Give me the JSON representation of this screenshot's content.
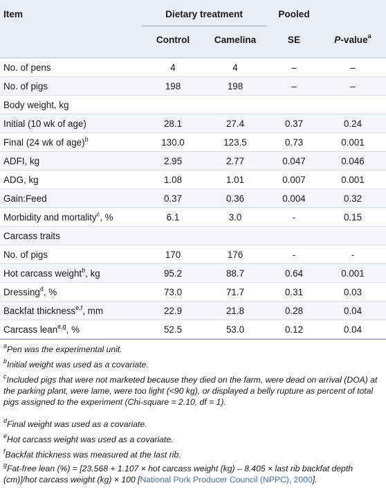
{
  "header": {
    "item": "Item",
    "dietary": "Dietary treatment",
    "pooled": "Pooled",
    "control": "Control",
    "camelina": "Camelina",
    "se": "SE",
    "pvalue_main": "P",
    "pvalue_rest": "-value",
    "pvalue_sup": "a"
  },
  "rows": [
    {
      "label": "No. of pens",
      "sup": "",
      "unit": "",
      "control": "4",
      "camelina": "4",
      "se": "–",
      "p": "–"
    },
    {
      "label": "No. of pigs",
      "sup": "",
      "unit": "",
      "control": "198",
      "camelina": "198",
      "se": "–",
      "p": "–"
    },
    {
      "label": "Body weight, kg",
      "sup": "",
      "unit": "",
      "control": "",
      "camelina": "",
      "se": "",
      "p": ""
    },
    {
      "label": "Initial (10 wk of age)",
      "sup": "",
      "unit": "",
      "control": "28.1",
      "camelina": "27.4",
      "se": "0.37",
      "p": "0.24"
    },
    {
      "label": "Final (24 wk of age)",
      "sup": "b",
      "unit": "",
      "control": "130.0",
      "camelina": "123.5",
      "se": "0.73",
      "p": "0.001"
    },
    {
      "label": "ADFI, kg",
      "sup": "",
      "unit": "",
      "control": "2.95",
      "camelina": "2.77",
      "se": "0.047",
      "p": "0.046"
    },
    {
      "label": "ADG, kg",
      "sup": "",
      "unit": "",
      "control": "1.08",
      "camelina": "1.01",
      "se": "0.007",
      "p": "0.001"
    },
    {
      "label": "Gain:Feed",
      "sup": "",
      "unit": "",
      "control": "0.37",
      "camelina": "0.36",
      "se": "0.004",
      "p": "0.32"
    },
    {
      "label": "Morbidity and mortality",
      "sup": "c",
      "unit": ", %",
      "control": "6.1",
      "camelina": "3.0",
      "se": "-",
      "p": "0.15"
    },
    {
      "label": "Carcass traits",
      "sup": "",
      "unit": "",
      "control": "",
      "camelina": "",
      "se": "",
      "p": ""
    },
    {
      "label": "No. of pigs",
      "sup": "",
      "unit": "",
      "control": "170",
      "camelina": "176",
      "se": "-",
      "p": "-"
    },
    {
      "label": "Hot carcass weight",
      "sup": "b",
      "unit": ", kg",
      "control": "95.2",
      "camelina": "88.7",
      "se": "0.64",
      "p": "0.001"
    },
    {
      "label": "Dressing",
      "sup": "d",
      "unit": ", %",
      "control": "73.0",
      "camelina": "71.7",
      "se": "0.31",
      "p": "0.03"
    },
    {
      "label": "Backfat thickness",
      "sup": "e,f",
      "unit": ", mm",
      "control": "22.9",
      "camelina": "21.8",
      "se": "0.28",
      "p": "0.04"
    },
    {
      "label": "Carcass lean",
      "sup": "e,g",
      "unit": ", %",
      "control": "52.5",
      "camelina": "53.0",
      "se": "0.12",
      "p": "0.04"
    }
  ],
  "footnotes": {
    "a": {
      "mark": "a",
      "text": "Pen was the experimental unit."
    },
    "b": {
      "mark": "b",
      "text": "Initial weight was used as a covariate."
    },
    "c": {
      "mark": "c",
      "text": "Included pigs that were not marketed because they died on the farm, were dead on arrival (DOA) at the parking plant, were lame, were too light (<90 kg), or displayed a belly rupture as percent of total pigs assigned to the experiment (Chi-square = 2.10, df = 1)."
    },
    "d": {
      "mark": "d",
      "text": "Final weight was used as a covariate."
    },
    "e": {
      "mark": "e",
      "text": "Hot carcass weight was used as a covariate."
    },
    "f": {
      "mark": "f",
      "text": "Backfat thickness was measured at the last rib."
    },
    "g": {
      "mark": "g",
      "text_before": "Fat-free lean (%) = [23.568 + 1.107 × hot carcass weight (kg) – 8.405 × last rib backfat depth (cm)]/hot carcass weight (kg) × 100 [",
      "link": "National Pork Producer Council (NPPC), 2000",
      "text_after": "]."
    }
  }
}
